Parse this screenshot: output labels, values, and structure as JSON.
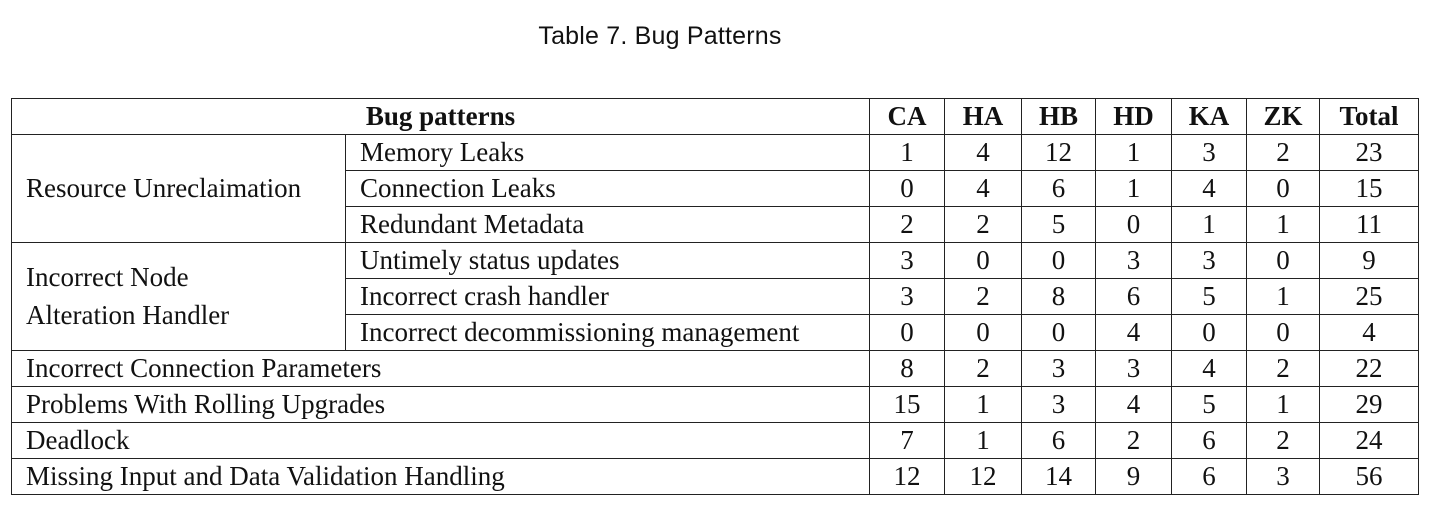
{
  "caption": "Table 7.  Bug Patterns",
  "table": {
    "header": {
      "pattern": "Bug patterns",
      "cols": [
        "CA",
        "HA",
        "HB",
        "HD",
        "KA",
        "ZK",
        "Total"
      ]
    },
    "groups": [
      {
        "name": "Resource Unreclaimation",
        "rows": [
          {
            "label": "Memory Leaks",
            "values": [
              "1",
              "4",
              "12",
              "1",
              "3",
              "2",
              "23"
            ]
          },
          {
            "label": "Connection Leaks",
            "values": [
              "0",
              "4",
              "6",
              "1",
              "4",
              "0",
              "15"
            ]
          },
          {
            "label": "Redundant Metadata",
            "values": [
              "2",
              "2",
              "5",
              "0",
              "1",
              "1",
              "11"
            ]
          }
        ]
      },
      {
        "name_line1": "Incorrect Node",
        "name_line2": "Alteration Handler",
        "rows": [
          {
            "label": "Untimely status updates",
            "values": [
              "3",
              "0",
              "0",
              "3",
              "3",
              "0",
              "9"
            ]
          },
          {
            "label": "Incorrect crash handler",
            "values": [
              "3",
              "2",
              "8",
              "6",
              "5",
              "1",
              "25"
            ]
          },
          {
            "label": "Incorrect decommissioning management",
            "values": [
              "0",
              "0",
              "0",
              "4",
              "0",
              "0",
              "4"
            ]
          }
        ]
      }
    ],
    "singles": [
      {
        "label": "Incorrect Connection Parameters",
        "values": [
          "8",
          "2",
          "3",
          "3",
          "4",
          "2",
          "22"
        ]
      },
      {
        "label": "Problems With Rolling Upgrades",
        "values": [
          "15",
          "1",
          "3",
          "4",
          "5",
          "1",
          "29"
        ]
      },
      {
        "label": "Deadlock",
        "values": [
          "7",
          "1",
          "6",
          "2",
          "6",
          "2",
          "24"
        ]
      },
      {
        "label": "Missing Input and Data Validation Handling",
        "values": [
          "12",
          "12",
          "14",
          "9",
          "6",
          "3",
          "56"
        ]
      }
    ]
  }
}
